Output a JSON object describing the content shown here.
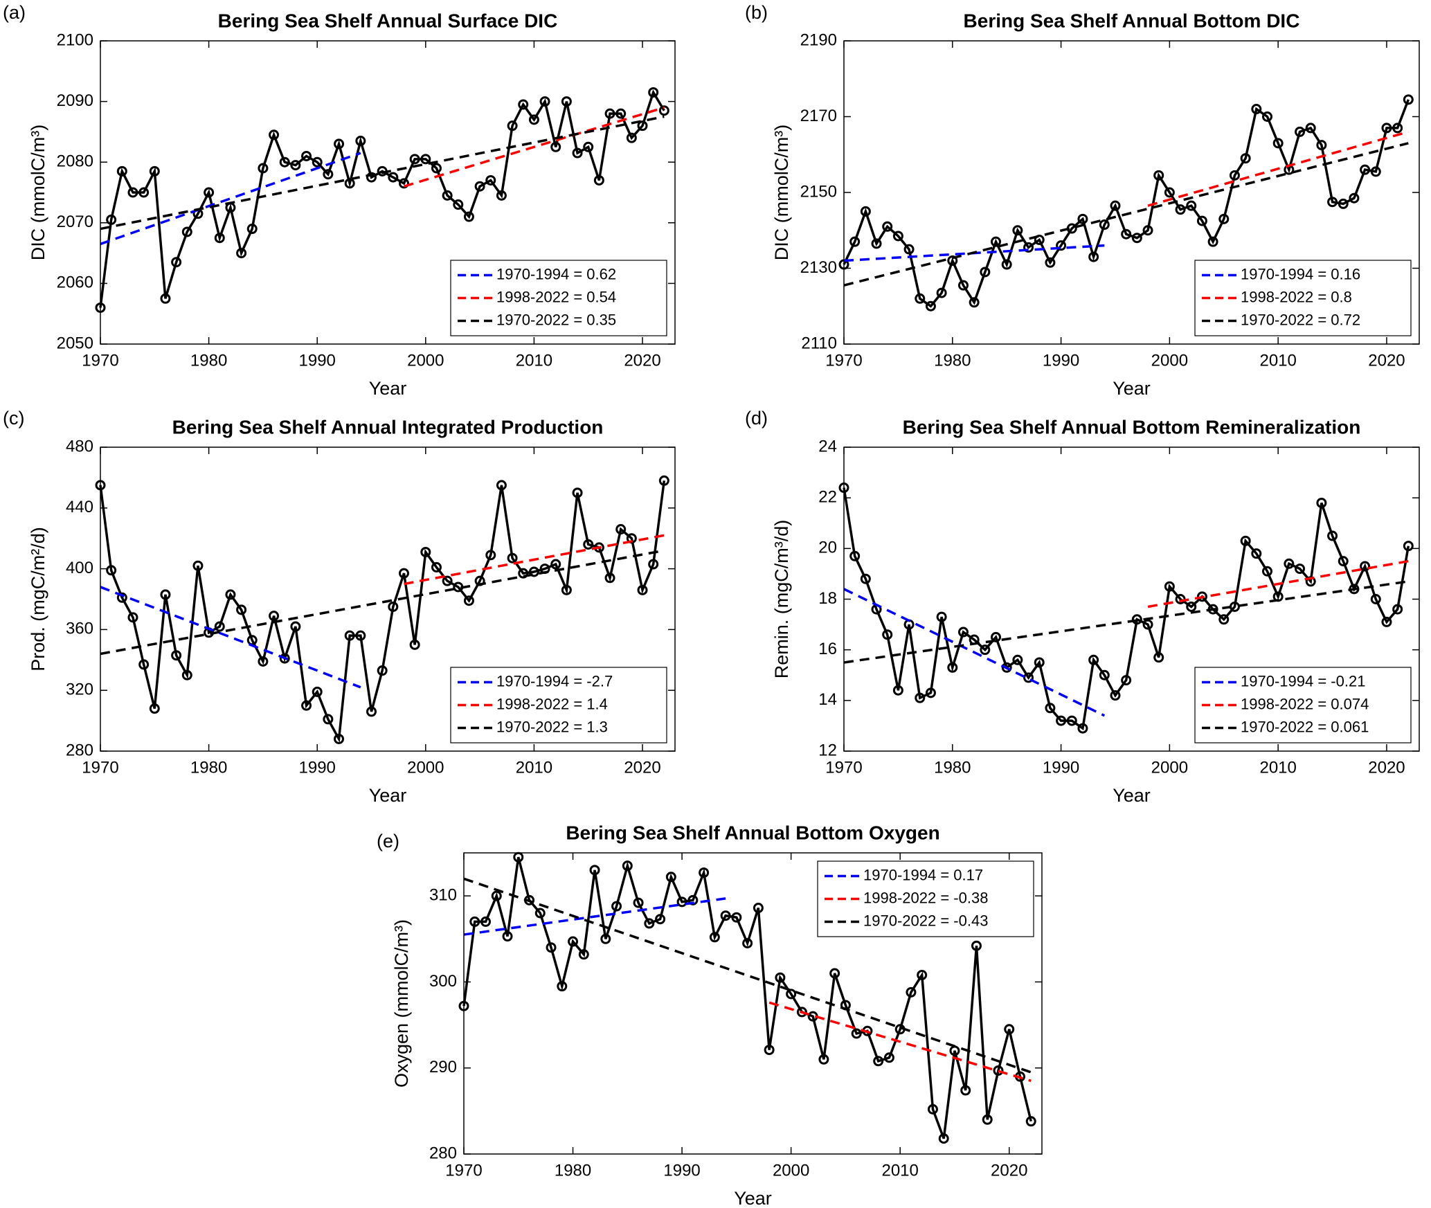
{
  "chart_data": [
    {
      "type": "line",
      "panel_label": "(a)",
      "title": "Bering Sea Shelf Annual Surface DIC",
      "xlabel": "Year",
      "ylabel": "DIC (mmolC/m³)",
      "xlim": [
        1970,
        2023
      ],
      "xticks": [
        1970,
        1980,
        1990,
        2000,
        2010,
        2020
      ],
      "ylim": [
        2050,
        2100
      ],
      "yticks": [
        2050,
        2060,
        2070,
        2080,
        2090,
        2100
      ],
      "legend": "lower right",
      "x": [
        1970,
        1971,
        1972,
        1973,
        1974,
        1975,
        1976,
        1977,
        1978,
        1979,
        1980,
        1981,
        1982,
        1983,
        1984,
        1985,
        1986,
        1987,
        1988,
        1989,
        1990,
        1991,
        1992,
        1993,
        1994,
        1995,
        1996,
        1997,
        1998,
        1999,
        2000,
        2001,
        2002,
        2003,
        2004,
        2005,
        2006,
        2007,
        2008,
        2009,
        2010,
        2011,
        2012,
        2013,
        2014,
        2015,
        2016,
        2017,
        2018,
        2019,
        2020,
        2021,
        2022
      ],
      "series": [
        {
          "color": "#000000",
          "marker": "o",
          "values": [
            2056,
            2070.5,
            2078.5,
            2075,
            2075,
            2078.5,
            2057.5,
            2063.5,
            2068.5,
            2071.5,
            2075,
            2067.5,
            2072.5,
            2065,
            2069,
            2079,
            2084.5,
            2080,
            2079.5,
            2081,
            2080,
            2078,
            2083,
            2076.5,
            2083.5,
            2077.5,
            2078.5,
            2077.5,
            2076.5,
            2080.5,
            2080.5,
            2079,
            2074.5,
            2073,
            2071,
            2076,
            2077,
            2074.5,
            2086,
            2089.5,
            2087,
            2090,
            2082.5,
            2090,
            2081.5,
            2082.5,
            2077,
            2088,
            2088,
            2084,
            2086,
            2091.5,
            2088.5
          ]
        },
        {
          "name": "1970-1994 = 0.62",
          "color": "#0000ff",
          "dash": true,
          "x": [
            1970,
            1994
          ],
          "values": [
            2066.5,
            2081.5
          ]
        },
        {
          "name": "1998-2022 = 0.54",
          "color": "#ff0000",
          "dash": true,
          "x": [
            1998,
            2022
          ],
          "values": [
            2076,
            2089
          ]
        },
        {
          "name": "1970-2022 = 0.35",
          "color": "#000000",
          "dash": true,
          "x": [
            1970,
            2022
          ],
          "values": [
            2069,
            2087.5
          ]
        }
      ]
    },
    {
      "type": "line",
      "panel_label": "(b)",
      "title": "Bering Sea Shelf Annual Bottom DIC",
      "xlabel": "Year",
      "ylabel": "DIC (mmolC/m³)",
      "xlim": [
        1970,
        2023
      ],
      "xticks": [
        1970,
        1980,
        1990,
        2000,
        2010,
        2020
      ],
      "ylim": [
        2110,
        2190
      ],
      "yticks": [
        2110,
        2130,
        2150,
        2170,
        2190
      ],
      "legend": "lower right",
      "x": [
        1970,
        1971,
        1972,
        1973,
        1974,
        1975,
        1976,
        1977,
        1978,
        1979,
        1980,
        1981,
        1982,
        1983,
        1984,
        1985,
        1986,
        1987,
        1988,
        1989,
        1990,
        1991,
        1992,
        1993,
        1994,
        1995,
        1996,
        1997,
        1998,
        1999,
        2000,
        2001,
        2002,
        2003,
        2004,
        2005,
        2006,
        2007,
        2008,
        2009,
        2010,
        2011,
        2012,
        2013,
        2014,
        2015,
        2016,
        2017,
        2018,
        2019,
        2020,
        2021,
        2022
      ],
      "series": [
        {
          "color": "#000000",
          "marker": "o",
          "values": [
            2131,
            2137,
            2145,
            2136.5,
            2141,
            2138.5,
            2135,
            2122,
            2120,
            2123.5,
            2132,
            2125.5,
            2121,
            2129,
            2137,
            2131,
            2140,
            2135.5,
            2137.5,
            2131.5,
            2136,
            2140.5,
            2143,
            2133,
            2141.5,
            2146.5,
            2139,
            2138,
            2140,
            2154.5,
            2150,
            2145.5,
            2146.5,
            2142.5,
            2137,
            2143,
            2154.5,
            2159,
            2172,
            2170,
            2163,
            2156,
            2166,
            2167,
            2162.5,
            2147.5,
            2147,
            2148.5,
            2156,
            2155.5,
            2167,
            2167,
            2174.5
          ]
        },
        {
          "name": "1970-1994 = 0.16",
          "color": "#0000ff",
          "dash": true,
          "x": [
            1970,
            1994
          ],
          "values": [
            2132,
            2136
          ]
        },
        {
          "name": "1998-2022 = 0.8",
          "color": "#ff0000",
          "dash": true,
          "x": [
            1998,
            2022
          ],
          "values": [
            2146.5,
            2166
          ]
        },
        {
          "name": "1970-2022 = 0.72",
          "color": "#000000",
          "dash": true,
          "x": [
            1970,
            2022
          ],
          "values": [
            2125.5,
            2163
          ]
        }
      ]
    },
    {
      "type": "line",
      "panel_label": "(c)",
      "title": "Bering Sea Shelf Annual Integrated Production",
      "xlabel": "Year",
      "ylabel": "Prod. (mgC/m²/d)",
      "xlim": [
        1970,
        2023
      ],
      "xticks": [
        1970,
        1980,
        1990,
        2000,
        2010,
        2020
      ],
      "ylim": [
        280,
        480
      ],
      "yticks": [
        280,
        320,
        360,
        400,
        440,
        480
      ],
      "legend": "lower right",
      "x": [
        1970,
        1971,
        1972,
        1973,
        1974,
        1975,
        1976,
        1977,
        1978,
        1979,
        1980,
        1981,
        1982,
        1983,
        1984,
        1985,
        1986,
        1987,
        1988,
        1989,
        1990,
        1991,
        1992,
        1993,
        1994,
        1995,
        1996,
        1997,
        1998,
        1999,
        2000,
        2001,
        2002,
        2003,
        2004,
        2005,
        2006,
        2007,
        2008,
        2009,
        2010,
        2011,
        2012,
        2013,
        2014,
        2015,
        2016,
        2017,
        2018,
        2019,
        2020,
        2021,
        2022
      ],
      "series": [
        {
          "color": "#000000",
          "marker": "o",
          "values": [
            455,
            399,
            381,
            368,
            337,
            308,
            383,
            343,
            330,
            402,
            358,
            362,
            383,
            373,
            353,
            339,
            369,
            341,
            362,
            310,
            319,
            301,
            288,
            356,
            356,
            306,
            333,
            375,
            397,
            350,
            411,
            401,
            392,
            388,
            379,
            392,
            409,
            455,
            407,
            397,
            398,
            400,
            403,
            386,
            450,
            416,
            414,
            394,
            426,
            420,
            386,
            403,
            458
          ]
        },
        {
          "name": "1970-1994 = -2.7",
          "color": "#0000ff",
          "dash": true,
          "x": [
            1970,
            1994
          ],
          "values": [
            388,
            322
          ]
        },
        {
          "name": "1998-2022 = 1.4",
          "color": "#ff0000",
          "dash": true,
          "x": [
            1998,
            2022
          ],
          "values": [
            390,
            422
          ]
        },
        {
          "name": "1970-2022 = 1.3",
          "color": "#000000",
          "dash": true,
          "x": [
            1970,
            2022
          ],
          "values": [
            344,
            412
          ]
        }
      ]
    },
    {
      "type": "line",
      "panel_label": "(d)",
      "title": "Bering Sea Shelf Annual Bottom Remineralization",
      "xlabel": "Year",
      "ylabel": "Remin. (mgC/m³/d)",
      "xlim": [
        1970,
        2023
      ],
      "xticks": [
        1970,
        1980,
        1990,
        2000,
        2010,
        2020
      ],
      "ylim": [
        12,
        24
      ],
      "yticks": [
        12,
        14,
        16,
        18,
        20,
        22,
        24
      ],
      "legend": "lower right",
      "x": [
        1970,
        1971,
        1972,
        1973,
        1974,
        1975,
        1976,
        1977,
        1978,
        1979,
        1980,
        1981,
        1982,
        1983,
        1984,
        1985,
        1986,
        1987,
        1988,
        1989,
        1990,
        1991,
        1992,
        1993,
        1994,
        1995,
        1996,
        1997,
        1998,
        1999,
        2000,
        2001,
        2002,
        2003,
        2004,
        2005,
        2006,
        2007,
        2008,
        2009,
        2010,
        2011,
        2012,
        2013,
        2014,
        2015,
        2016,
        2017,
        2018,
        2019,
        2020,
        2021,
        2022
      ],
      "series": [
        {
          "color": "#000000",
          "marker": "o",
          "values": [
            22.4,
            19.7,
            18.8,
            17.6,
            16.6,
            14.4,
            17.0,
            14.1,
            14.3,
            17.3,
            15.3,
            16.7,
            16.4,
            16.0,
            16.5,
            15.3,
            15.6,
            14.9,
            15.5,
            13.7,
            13.2,
            13.2,
            12.9,
            15.6,
            15.0,
            14.2,
            14.8,
            17.2,
            17.0,
            15.7,
            18.5,
            18.0,
            17.7,
            18.1,
            17.6,
            17.2,
            17.7,
            20.3,
            19.8,
            19.1,
            18.1,
            19.4,
            19.2,
            18.7,
            21.8,
            20.5,
            19.5,
            18.4,
            19.3,
            18.0,
            17.1,
            17.6,
            20.1
          ]
        },
        {
          "name": "1970-1994 = -0.21",
          "color": "#0000ff",
          "dash": true,
          "x": [
            1970,
            1994
          ],
          "values": [
            18.4,
            13.4
          ]
        },
        {
          "name": "1998-2022 = 0.074",
          "color": "#ff0000",
          "dash": true,
          "x": [
            1998,
            2022
          ],
          "values": [
            17.7,
            19.5
          ]
        },
        {
          "name": "1970-2022 = 0.061",
          "color": "#000000",
          "dash": true,
          "x": [
            1970,
            2022
          ],
          "values": [
            15.5,
            18.7
          ]
        }
      ]
    },
    {
      "type": "line",
      "panel_label": "(e)",
      "title": "Bering Sea Shelf Annual Bottom Oxygen",
      "xlabel": "Year",
      "ylabel": "Oxygen (mmolC/m³)",
      "xlim": [
        1970,
        2023
      ],
      "xticks": [
        1970,
        1980,
        1990,
        2000,
        2010,
        2020
      ],
      "ylim": [
        280,
        315
      ],
      "yticks": [
        280,
        290,
        300,
        310
      ],
      "legend": "upper right",
      "x": [
        1970,
        1971,
        1972,
        1973,
        1974,
        1975,
        1976,
        1977,
        1978,
        1979,
        1980,
        1981,
        1982,
        1983,
        1984,
        1985,
        1986,
        1987,
        1988,
        1989,
        1990,
        1991,
        1992,
        1993,
        1994,
        1995,
        1996,
        1997,
        1998,
        1999,
        2000,
        2001,
        2002,
        2003,
        2004,
        2005,
        2006,
        2007,
        2008,
        2009,
        2010,
        2011,
        2012,
        2013,
        2014,
        2015,
        2016,
        2017,
        2018,
        2019,
        2020,
        2021,
        2022
      ],
      "series": [
        {
          "color": "#000000",
          "marker": "o",
          "values": [
            297.2,
            307,
            307,
            310,
            305.3,
            314.5,
            309.5,
            308,
            304,
            299.5,
            304.7,
            303.2,
            313,
            305,
            308.8,
            313.5,
            309.2,
            306.8,
            307.3,
            312.2,
            309.3,
            309.5,
            312.7,
            305.2,
            307.7,
            307.5,
            304.5,
            308.6,
            292.1,
            300.5,
            298.6,
            296.5,
            296,
            291,
            301,
            297.3,
            294,
            294.3,
            290.8,
            291.2,
            294.5,
            298.8,
            300.8,
            285.2,
            281.8,
            292,
            287.4,
            304.2,
            284,
            289.7,
            294.5,
            289,
            283.8
          ]
        },
        {
          "name": "1970-1994 = 0.17",
          "color": "#0000ff",
          "dash": true,
          "x": [
            1970,
            1994
          ],
          "values": [
            305.5,
            309.7
          ]
        },
        {
          "name": "1998-2022 = -0.38",
          "color": "#ff0000",
          "dash": true,
          "x": [
            1998,
            2022
          ],
          "values": [
            297.6,
            288.5
          ]
        },
        {
          "name": "1970-2022 = -0.43",
          "color": "#000000",
          "dash": true,
          "x": [
            1970,
            2022
          ],
          "values": [
            312,
            289.5
          ]
        }
      ]
    }
  ]
}
